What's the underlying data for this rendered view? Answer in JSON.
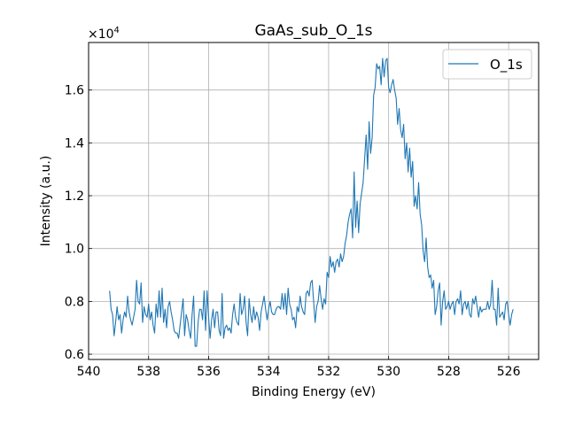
{
  "chart_data": {
    "type": "line",
    "title": "GaAs_sub_O_1s",
    "xlabel": "Binding Energy (eV)",
    "ylabel": "Intensity (a.u.)",
    "y_offset_label": "×10",
    "y_offset_exponent": "4",
    "x_inverted": true,
    "xlim": [
      540,
      525
    ],
    "ylim": [
      5800,
      17800
    ],
    "x_ticks": [
      540,
      538,
      536,
      534,
      532,
      530,
      528,
      526
    ],
    "x_tick_labels": [
      "540",
      "538",
      "536",
      "534",
      "532",
      "530",
      "528",
      "526"
    ],
    "y_ticks": [
      6000,
      8000,
      10000,
      12000,
      14000,
      16000
    ],
    "y_tick_labels": [
      "0.6",
      "0.8",
      "1.0",
      "1.2",
      "1.4",
      "1.6"
    ],
    "grid": true,
    "legend_position": "top-right",
    "series": [
      {
        "name": "O_1s",
        "color": "#1f77b4",
        "x_start": 539.3,
        "x_step": -0.05,
        "values": [
          8400,
          7700,
          7500,
          6700,
          7200,
          7800,
          7300,
          7500,
          6800,
          7300,
          7600,
          7400,
          8200,
          7600,
          7300,
          7100,
          7400,
          7700,
          8800,
          8000,
          7900,
          8700,
          7200,
          7800,
          7500,
          7400,
          7900,
          7300,
          7600,
          7100,
          6800,
          7900,
          7400,
          8400,
          7400,
          8500,
          7200,
          7700,
          7000,
          7800,
          8000,
          7600,
          7300,
          6900,
          6800,
          6800,
          6600,
          7100,
          7600,
          8100,
          6700,
          7500,
          7300,
          6900,
          6600,
          7500,
          8200,
          6300,
          6300,
          7200,
          7700,
          7700,
          7300,
          8400,
          6900,
          8400,
          7400,
          6600,
          7300,
          7700,
          7000,
          7600,
          7600,
          6900,
          6700,
          8300,
          6600,
          7000,
          7100,
          6900,
          7000,
          6800,
          7500,
          7900,
          7400,
          7200,
          7100,
          8300,
          7500,
          7700,
          8200,
          7200,
          6700,
          8100,
          7500,
          7200,
          7800,
          7300,
          7600,
          7400,
          6900,
          7600,
          7900,
          8200,
          7700,
          7300,
          7700,
          8000,
          7600,
          7500,
          7500,
          7700,
          7800,
          7800,
          7700,
          8300,
          7700,
          8300,
          7500,
          8500,
          7900,
          7700,
          7300,
          7400,
          7000,
          7800,
          7600,
          8200,
          7800,
          7600,
          7500,
          8300,
          8400,
          8200,
          8700,
          8800,
          8000,
          7200,
          7800,
          8000,
          8600,
          8100,
          7700,
          8100,
          7900,
          9100,
          8900,
          9700,
          9300,
          9500,
          9100,
          9500,
          9600,
          9300,
          9800,
          9500,
          9700,
          10200,
          10500,
          11000,
          11300,
          11500,
          10400,
          12900,
          10800,
          11800,
          10600,
          11700,
          12100,
          12500,
          13400,
          14300,
          13000,
          14800,
          13600,
          14200,
          15800,
          16100,
          17000,
          16800,
          16900,
          16200,
          17200,
          16500,
          17100,
          17200,
          16100,
          15900,
          16200,
          16400,
          16000,
          15700,
          14700,
          15300,
          14500,
          14200,
          14700,
          13400,
          14000,
          12900,
          13800,
          12700,
          13300,
          11600,
          12000,
          11500,
          12500,
          11300,
          10900,
          9900,
          9500,
          10400,
          9300,
          8900,
          9000,
          8500,
          8800,
          7500,
          7800,
          8400,
          8700,
          7100,
          8000,
          8400,
          7700,
          7800,
          8000,
          7700,
          7900,
          8000,
          7500,
          8000,
          8100,
          7900,
          8400,
          7500,
          7900,
          8000,
          7700,
          8000,
          7500,
          7400,
          8100,
          7900,
          8200,
          7800,
          7400,
          7800,
          7600,
          7700,
          7700,
          7700,
          8000,
          7700,
          7900,
          8800,
          7700,
          7700,
          7100,
          8500,
          7400,
          7500,
          7600,
          7300,
          7900,
          8000,
          7500,
          7100,
          7500,
          7700
        ]
      }
    ]
  }
}
